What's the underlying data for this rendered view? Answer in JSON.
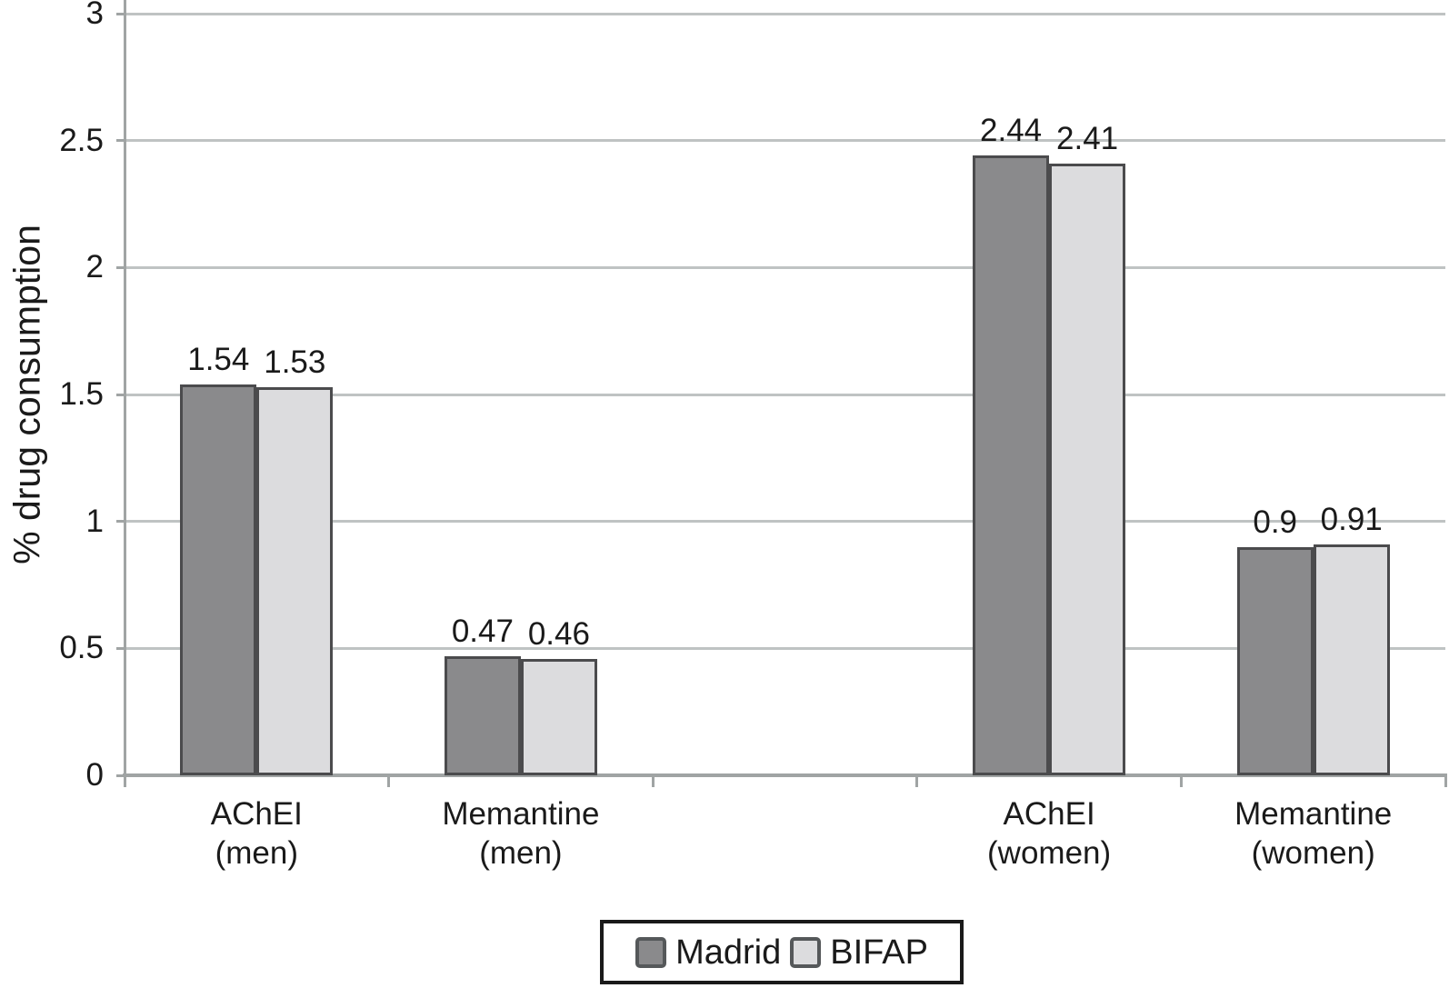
{
  "chart_data": {
    "type": "bar",
    "title": "",
    "xlabel": "",
    "ylabel": "% drug consumption",
    "ylim": [
      0,
      3
    ],
    "yticks": [
      0,
      0.5,
      1,
      1.5,
      2,
      2.5,
      3
    ],
    "ytick_labels": [
      "0",
      "0.5",
      "1",
      "1.5",
      "2",
      "2.5",
      "3"
    ],
    "grid": "horizontal",
    "legend_position": "bottom",
    "num_slots": 5,
    "categories": [
      {
        "line1": "AChEI",
        "line2": "(men)",
        "slot": 0
      },
      {
        "line1": "Memantine",
        "line2": "(men)",
        "slot": 1
      },
      {
        "line1": "AChEI",
        "line2": "(women)",
        "slot": 3
      },
      {
        "line1": "Memantine",
        "line2": "(women)",
        "slot": 4
      }
    ],
    "series": [
      {
        "name": "Madrid",
        "color": "#8a8a8c",
        "values": [
          1.54,
          0.47,
          2.44,
          0.9
        ],
        "labels": [
          "1.54",
          "0.47",
          "2.44",
          "0.9"
        ]
      },
      {
        "name": "BIFAP",
        "color": "#dcdcde",
        "values": [
          1.53,
          0.46,
          2.41,
          0.91
        ],
        "labels": [
          "1.53",
          "0.46",
          "2.41",
          "0.91"
        ]
      }
    ]
  },
  "colors": {
    "bar_border": "#4b4b4d",
    "gridline": "#bfc3c3",
    "axis": "#a0a4a4",
    "text": "#1a1a1a",
    "legend_border": "#1a1a1a"
  }
}
